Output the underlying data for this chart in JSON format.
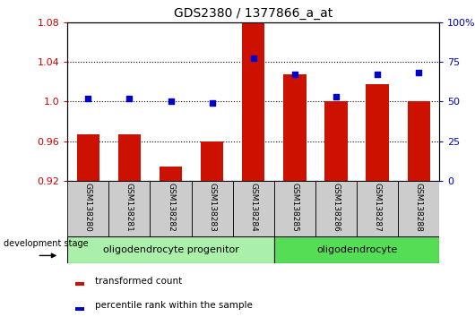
{
  "title": "GDS2380 / 1377866_a_at",
  "samples": [
    "GSM138280",
    "GSM138281",
    "GSM138282",
    "GSM138283",
    "GSM138284",
    "GSM138285",
    "GSM138286",
    "GSM138287",
    "GSM138288"
  ],
  "red_bars": [
    0.967,
    0.967,
    0.934,
    0.96,
    1.079,
    1.027,
    1.0,
    1.017,
    1.0
  ],
  "blue_dots": [
    52,
    52,
    50,
    49,
    77,
    67,
    53,
    67,
    68
  ],
  "left_ylim": [
    0.92,
    1.08
  ],
  "right_ylim": [
    0,
    100
  ],
  "left_yticks": [
    0.92,
    0.96,
    1.0,
    1.04,
    1.08
  ],
  "right_yticks": [
    0,
    25,
    50,
    75,
    100
  ],
  "right_yticklabels": [
    "0",
    "25",
    "50",
    "75",
    "100%"
  ],
  "left_ycolor": "#cc0000",
  "right_ycolor": "#0000cc",
  "bar_color": "#cc1100",
  "dot_color": "#0000cc",
  "groups": [
    {
      "label": "oligodendrocyte progenitor",
      "start": 0,
      "end": 4,
      "color": "#aaf0aa"
    },
    {
      "label": "oligodendrocyte",
      "start": 5,
      "end": 8,
      "color": "#55dd55"
    }
  ],
  "legend_bar_label": "transformed count",
  "legend_dot_label": "percentile rank within the sample",
  "dev_stage_label": "development stage",
  "tick_area_color": "#cccccc",
  "figsize": [
    5.3,
    3.54
  ],
  "dpi": 100
}
